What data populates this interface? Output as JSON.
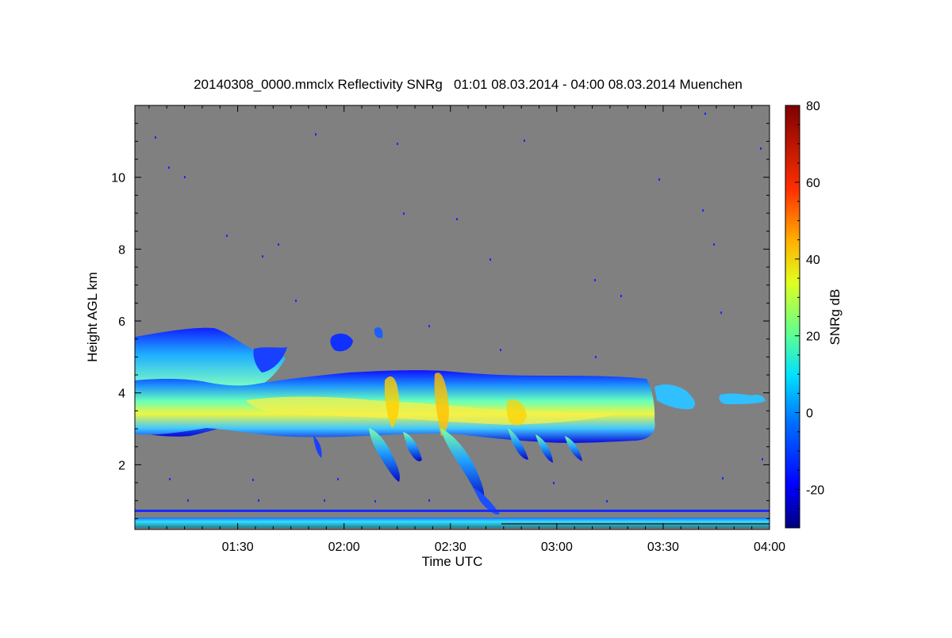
{
  "chart_data": {
    "type": "heatmap",
    "title": "20140308_0000.mmclx Reflectivity SNRg   01:01 08.03.2014 - 04:00 08.03.2014 Muenchen",
    "xlabel": "Time UTC",
    "ylabel": "Height AGL km",
    "colorbar_label": "SNRg dB",
    "x_range_minutes": [
      61,
      240
    ],
    "x_ticks": [
      {
        "t": 90,
        "label": "01:30"
      },
      {
        "t": 120,
        "label": "02:00"
      },
      {
        "t": 150,
        "label": "02:30"
      },
      {
        "t": 180,
        "label": "03:00"
      },
      {
        "t": 210,
        "label": "03:30"
      },
      {
        "t": 240,
        "label": "04:00"
      }
    ],
    "ylim": [
      0.2,
      12.0
    ],
    "y_ticks": [
      2,
      4,
      6,
      8,
      10
    ],
    "colorbar_range": [
      -30,
      80
    ],
    "colorbar_ticks": [
      -20,
      0,
      20,
      40,
      60,
      80
    ],
    "background_color": "#808080",
    "colormap": [
      "#000080",
      "#0000ff",
      "#0080ff",
      "#00ffff",
      "#80ff80",
      "#ffff00",
      "#ff8000",
      "#ff0000",
      "#800000"
    ],
    "features": [
      {
        "name": "main stratiform layer",
        "time_start": "01:01",
        "time_end": "03:31",
        "height_base_km": 2.9,
        "height_top_km": 4.4,
        "peak_snr_db": 45
      },
      {
        "name": "early deep layer",
        "time_start": "01:01",
        "time_end": "01:40",
        "height_base_km": 2.8,
        "height_top_km": 5.7
      },
      {
        "name": "fall streaks",
        "time_start": "02:10",
        "time_end": "03:10",
        "lowest_km": 0.5
      },
      {
        "name": "trailing cloud patches",
        "time_start": "03:31",
        "time_end": "04:00",
        "height_km": 3.8
      }
    ]
  }
}
